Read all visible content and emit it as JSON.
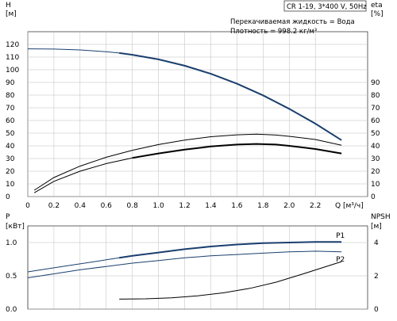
{
  "chart_data": [
    {
      "type": "line",
      "header": "CR 1-19, 3*400 V, 50Hz",
      "notes": [
        "Перекачиваемая жидкость = Вода",
        "Плотность = 998.2 кг/м³"
      ],
      "ylabel_left": [
        "H",
        "[м]"
      ],
      "ylabel_right": [
        "eta",
        "[%]"
      ],
      "xlabel": "Q [м³/ч]",
      "xlim": [
        0,
        2.6
      ],
      "ylim_left": [
        0,
        130
      ],
      "ylim_right": [
        0,
        130
      ],
      "x_ticks": [
        "0",
        "0.2",
        "0.4",
        "0.6",
        "0.8",
        "1.0",
        "1.2",
        "1.4",
        "1.6",
        "1.8",
        "2.0",
        "2.2"
      ],
      "y_ticks_left": [
        "0",
        "10",
        "20",
        "30",
        "40",
        "50",
        "60",
        "70",
        "80",
        "90",
        "100",
        "110",
        "120"
      ],
      "y_ticks_right": [
        "0",
        "10",
        "20",
        "30",
        "40",
        "50",
        "60",
        "70",
        "80",
        "90"
      ],
      "grid": true,
      "series": [
        {
          "name": "H",
          "color": "#1a3f6e",
          "x": [
            0,
            0.2,
            0.4,
            0.6,
            0.7,
            0.8,
            1.0,
            1.2,
            1.4,
            1.6,
            1.8,
            2.0,
            2.2,
            2.4
          ],
          "y": [
            116.5,
            116.3,
            115.6,
            114.2,
            113.2,
            111.8,
            108.2,
            103.2,
            96.8,
            89,
            79.8,
            69.2,
            57.5,
            44.5
          ],
          "bold_from": 0.7
        },
        {
          "name": "eta thin",
          "color": "#000000",
          "x": [
            0.05,
            0.2,
            0.4,
            0.6,
            0.8,
            1.0,
            1.2,
            1.4,
            1.6,
            1.75,
            1.9,
            2.0,
            2.2,
            2.4
          ],
          "y": [
            5,
            15,
            24,
            31,
            36.5,
            41,
            44.5,
            47.2,
            48.7,
            49.2,
            48.5,
            47.5,
            45,
            40.5
          ]
        },
        {
          "name": "eta bold",
          "color": "#000000",
          "x": [
            0.05,
            0.2,
            0.4,
            0.6,
            0.8,
            1.0,
            1.2,
            1.4,
            1.6,
            1.75,
            1.9,
            2.0,
            2.2,
            2.4
          ],
          "y": [
            3,
            12,
            20,
            26,
            30.5,
            34,
            37,
            39.5,
            41,
            41.5,
            41,
            40,
            37.5,
            34
          ],
          "bold_from": 0.7
        }
      ]
    },
    {
      "type": "line",
      "ylabel_left": [
        "P",
        "[кВт]"
      ],
      "ylabel_right": [
        "NPSH",
        "[м]"
      ],
      "xlim": [
        0,
        2.6
      ],
      "ylim_left": [
        0,
        1.25
      ],
      "ylim_right": [
        0,
        5
      ],
      "y_ticks_left": [
        "0.0",
        "0.5",
        "1.0"
      ],
      "y_ticks_right": [
        "0",
        "2",
        "4"
      ],
      "grid": true,
      "series": [
        {
          "name": "P1",
          "color": "#1a3f6e",
          "x": [
            0,
            0.2,
            0.4,
            0.6,
            0.7,
            0.8,
            1.0,
            1.2,
            1.4,
            1.6,
            1.8,
            2.0,
            2.2,
            2.4
          ],
          "y": [
            0.56,
            0.62,
            0.68,
            0.74,
            0.77,
            0.8,
            0.85,
            0.9,
            0.94,
            0.97,
            0.99,
            1.0,
            1.01,
            1.01
          ],
          "bold_from": 0.7
        },
        {
          "name": "P2",
          "color": "#1a3f6e",
          "x": [
            0,
            0.2,
            0.4,
            0.6,
            0.8,
            1.0,
            1.2,
            1.4,
            1.6,
            1.8,
            2.0,
            2.2,
            2.4
          ],
          "y": [
            0.47,
            0.53,
            0.59,
            0.64,
            0.69,
            0.73,
            0.77,
            0.8,
            0.82,
            0.84,
            0.86,
            0.87,
            0.86
          ]
        },
        {
          "name": "NPSH",
          "color": "#000000",
          "axis": "right",
          "x": [
            0.7,
            0.9,
            1.1,
            1.3,
            1.5,
            1.7,
            1.9,
            2.1,
            2.3,
            2.4
          ],
          "y": [
            0.6,
            0.62,
            0.68,
            0.8,
            0.98,
            1.25,
            1.62,
            2.1,
            2.6,
            2.85
          ]
        }
      ]
    }
  ]
}
